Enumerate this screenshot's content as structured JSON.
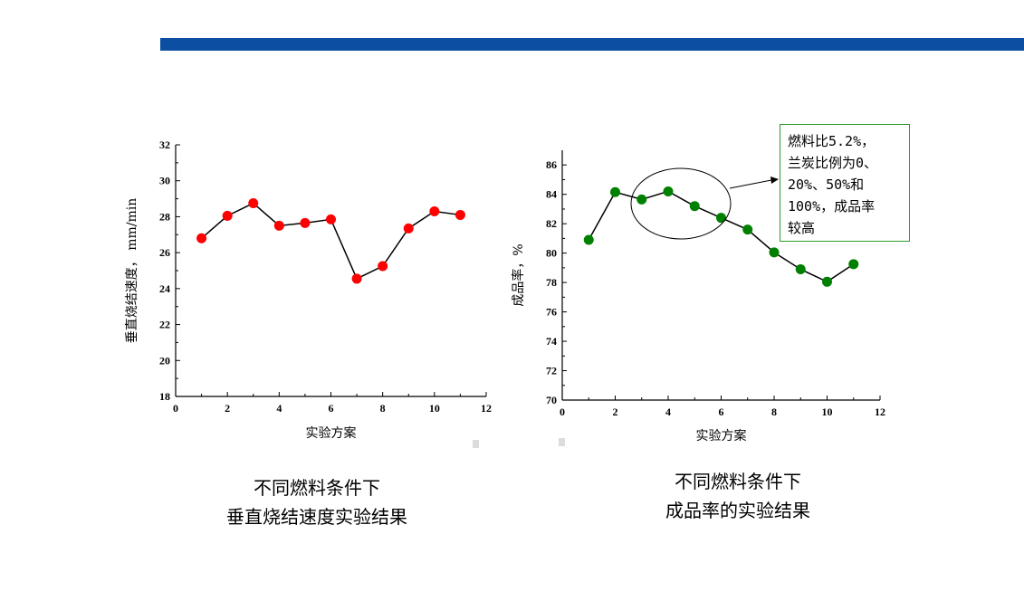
{
  "colors": {
    "top_bar": "#0b4ea2",
    "left_series": "#ff0000",
    "right_series": "#008000",
    "annotation_border": "#2e9b2e"
  },
  "chart_data": [
    {
      "type": "line",
      "xlabel": "实验方案",
      "ylabel": "垂直烧结速度， mm/min",
      "xlim": [
        0,
        12
      ],
      "ylim": [
        18,
        32
      ],
      "x_ticks": [
        0,
        2,
        4,
        6,
        8,
        10,
        12
      ],
      "y_ticks": [
        18,
        20,
        22,
        24,
        26,
        28,
        30,
        32
      ],
      "marker_color": "#ff0000",
      "grid": false,
      "series": [
        {
          "x": [
            1,
            2,
            3,
            4,
            5,
            6,
            7,
            8,
            9,
            10,
            11
          ],
          "values": [
            26.8,
            28.05,
            28.75,
            27.5,
            27.65,
            27.85,
            24.55,
            25.25,
            27.35,
            28.3,
            28.1
          ]
        }
      ]
    },
    {
      "type": "line",
      "xlabel": "实验方案",
      "ylabel": "成品率，%",
      "xlim": [
        0,
        12
      ],
      "ylim": [
        70,
        87
      ],
      "x_ticks": [
        0,
        2,
        4,
        6,
        8,
        10,
        12
      ],
      "y_ticks": [
        70,
        72,
        74,
        76,
        78,
        80,
        82,
        84,
        86
      ],
      "marker_color": "#008000",
      "grid": false,
      "series": [
        {
          "x": [
            1,
            2,
            3,
            4,
            5,
            6,
            7,
            8,
            9,
            10,
            11
          ],
          "values": [
            80.9,
            84.15,
            83.65,
            84.2,
            83.2,
            82.4,
            81.6,
            80.05,
            78.9,
            78.05,
            79.25
          ]
        }
      ]
    }
  ],
  "annotation": {
    "lines": [
      "燃料比5.2%，",
      "兰炭比例为0、",
      "20%、50%和",
      "100%，成品率",
      "较高"
    ]
  },
  "captions": {
    "left": [
      "不同燃料条件下",
      "垂直烧结速度实验结果"
    ],
    "right": [
      "不同燃料条件下",
      "成品率的实验结果"
    ]
  }
}
